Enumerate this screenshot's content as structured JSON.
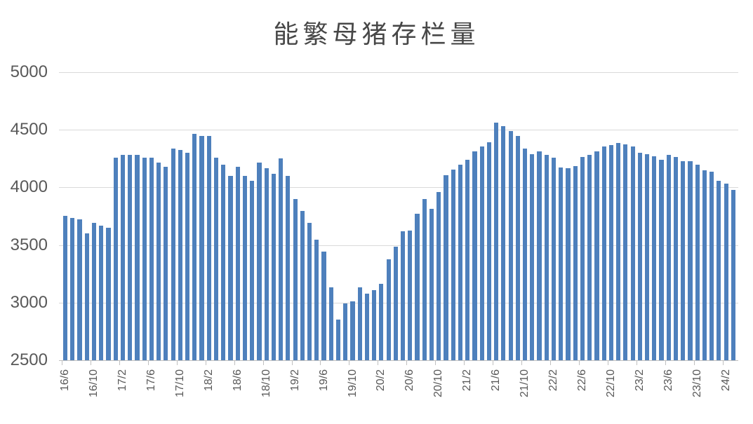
{
  "chart_data": {
    "type": "bar",
    "title": "能繁母猪存栏量",
    "legend_position": "none",
    "grid": true,
    "ylim": [
      2500,
      5000
    ],
    "y_ticks": [
      2500,
      3000,
      3500,
      4000,
      4500,
      5000
    ],
    "x_tick_step": 4,
    "x_tick_labels": [
      "16/6",
      "16/10",
      "17/2",
      "17/6",
      "17/10",
      "18/2",
      "18/6",
      "18/10",
      "19/2",
      "19/6",
      "19/10",
      "20/2",
      "20/6",
      "20/10",
      "21/2",
      "21/6",
      "21/10",
      "22/2",
      "22/6",
      "22/10",
      "23/2",
      "23/6",
      "23/10",
      "24/2"
    ],
    "categories": [
      "16/6",
      "16/7",
      "16/8",
      "16/9",
      "16/10",
      "16/11",
      "16/12",
      "17/1",
      "17/2",
      "17/3",
      "17/4",
      "17/5",
      "17/6",
      "17/7",
      "17/8",
      "17/9",
      "17/10",
      "17/11",
      "17/12",
      "18/1",
      "18/2",
      "18/3",
      "18/4",
      "18/5",
      "18/6",
      "18/7",
      "18/8",
      "18/9",
      "18/10",
      "18/11",
      "18/12",
      "19/1",
      "19/2",
      "19/3",
      "19/4",
      "19/5",
      "19/6",
      "19/7",
      "19/8",
      "19/9",
      "19/10",
      "19/11",
      "19/12",
      "20/1",
      "20/2",
      "20/3",
      "20/4",
      "20/5",
      "20/6",
      "20/7",
      "20/8",
      "20/9",
      "20/10",
      "20/11",
      "20/12",
      "21/1",
      "21/2",
      "21/3",
      "21/4",
      "21/5",
      "21/6",
      "21/7",
      "21/8",
      "21/9",
      "21/10",
      "21/11",
      "21/12",
      "22/1",
      "22/2",
      "22/3",
      "22/4",
      "22/5",
      "22/6",
      "22/7",
      "22/8",
      "22/9",
      "22/10",
      "22/11",
      "22/12",
      "23/1",
      "23/2",
      "23/3",
      "23/4",
      "23/5",
      "23/6",
      "23/7",
      "23/8",
      "23/9",
      "23/10",
      "23/11",
      "23/12",
      "24/1",
      "24/2",
      "24/3"
    ],
    "values": [
      3755,
      3735,
      3720,
      3600,
      3690,
      3665,
      3650,
      4255,
      4285,
      4285,
      4285,
      4255,
      4260,
      4215,
      4180,
      4340,
      4325,
      4300,
      4465,
      4445,
      4445,
      4255,
      4200,
      4100,
      4180,
      4100,
      4055,
      4215,
      4165,
      4115,
      4250,
      4100,
      3900,
      3795,
      3690,
      3545,
      3440,
      3135,
      2850,
      2995,
      3010,
      3135,
      3080,
      3110,
      3165,
      3375,
      3485,
      3620,
      3625,
      3770,
      3900,
      3815,
      3960,
      4105,
      4155,
      4200,
      4240,
      4310,
      4355,
      4390,
      4560,
      4530,
      4490,
      4445,
      4335,
      4290,
      4315,
      4280,
      4255,
      4175,
      4165,
      4185,
      4265,
      4285,
      4310,
      4355,
      4365,
      4385,
      4375,
      4355,
      4300,
      4290,
      4270,
      4240,
      4285,
      4265,
      4230,
      4230,
      4200,
      4150,
      4135,
      4060,
      4030,
      3980
    ],
    "bar_color": "#4e80bc",
    "gridline_color": "#d9d9d9",
    "axis_color": "#bfbfbf",
    "label_color": "#595959",
    "title_color": "#474747"
  }
}
